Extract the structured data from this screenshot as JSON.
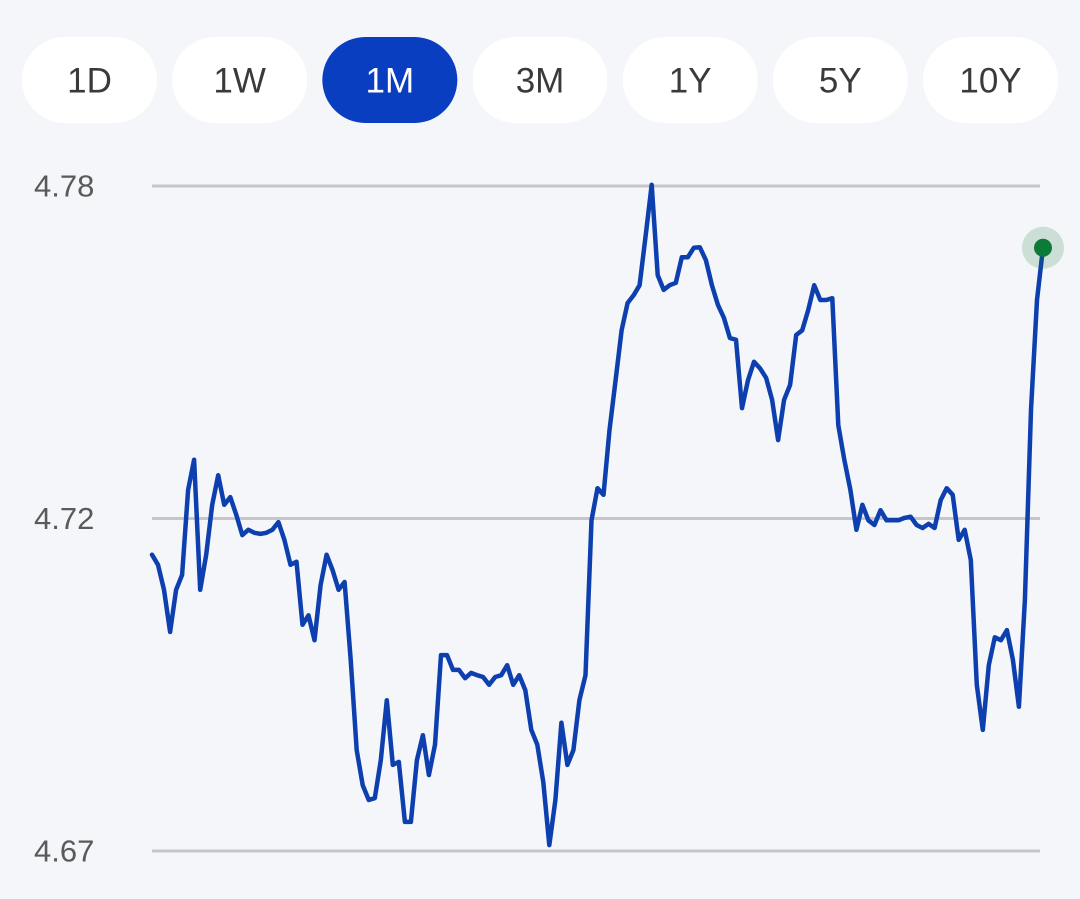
{
  "tabs": [
    "1D",
    "1W",
    "1M",
    "3M",
    "1Y",
    "5Y",
    "10Y"
  ],
  "selected_tab": 2,
  "chart_data": {
    "type": "line",
    "ylim": [
      4.668,
      4.78
    ],
    "yticks": [
      {
        "value": 4.78,
        "label": "4.78"
      },
      {
        "value": 4.724,
        "label": "4.72"
      },
      {
        "value": 4.668,
        "label": "4.67"
      }
    ],
    "grid": true,
    "series": [
      {
        "color": "#0d3fae",
        "values": [
          4.7179,
          4.7162,
          4.712,
          4.7049,
          4.712,
          4.7145,
          4.7288,
          4.7339,
          4.712,
          4.7179,
          4.7263,
          4.7313,
          4.7263,
          4.7276,
          4.7246,
          4.7212,
          4.7221,
          4.7216,
          4.7214,
          4.7216,
          4.7221,
          4.7234,
          4.7204,
          4.7162,
          4.7167,
          4.7061,
          4.7077,
          4.7035,
          4.7128,
          4.7179,
          4.7153,
          4.712,
          4.7133,
          4.7002,
          4.685,
          4.6791,
          4.6766,
          4.6769,
          4.6833,
          4.6934,
          4.6825,
          4.683,
          4.6729,
          4.6729,
          4.6833,
          4.6875,
          4.6808,
          4.6859,
          4.701,
          4.701,
          4.6985,
          4.6985,
          4.6971,
          4.698,
          4.6976,
          4.6973,
          4.696,
          4.6973,
          4.6976,
          4.6993,
          4.696,
          4.6976,
          4.6951,
          4.6884,
          4.6859,
          4.6796,
          4.669,
          4.6766,
          4.6896,
          4.6825,
          4.685,
          4.6934,
          4.6976,
          4.7237,
          4.7291,
          4.728,
          4.7389,
          4.7473,
          4.7557,
          4.7603,
          4.7616,
          4.7633,
          4.7717,
          4.7802,
          4.765,
          4.7625,
          4.7633,
          4.7637,
          4.768,
          4.768,
          4.7696,
          4.7697,
          4.7675,
          4.7633,
          4.76,
          4.7578,
          4.7544,
          4.7541,
          4.7426,
          4.7473,
          4.7504,
          4.7493,
          4.7477,
          4.744,
          4.7372,
          4.744,
          4.7465,
          4.7549,
          4.7557,
          4.7591,
          4.7633,
          4.7608,
          4.7608,
          4.7611,
          4.7397,
          4.7339,
          4.7288,
          4.7221,
          4.7263,
          4.7237,
          4.7229,
          4.7254,
          4.7237,
          4.7237,
          4.7237,
          4.7241,
          4.7243,
          4.7229,
          4.7224,
          4.7231,
          4.7224,
          4.7271,
          4.7291,
          4.728,
          4.7204,
          4.7221,
          4.717,
          4.696,
          4.6884,
          4.6993,
          4.704,
          4.7035,
          4.7052,
          4.7002,
          4.6923,
          4.7103,
          4.7423,
          4.7608,
          4.7696
        ]
      }
    ],
    "last_point_color": "#0e7a3a"
  }
}
